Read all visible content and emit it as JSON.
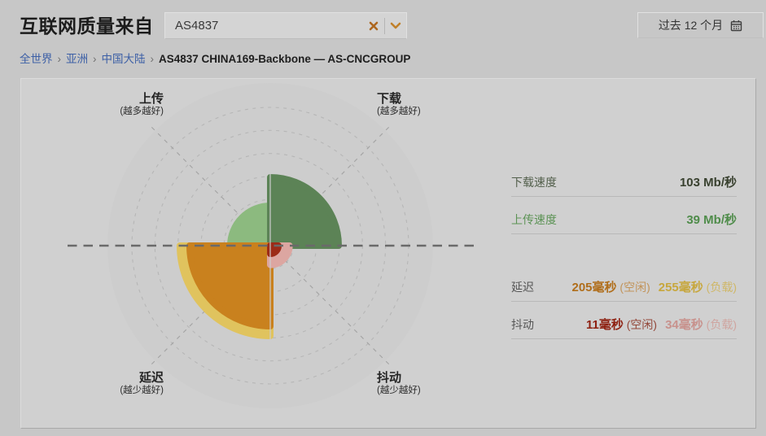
{
  "header": {
    "title": "互联网质量来自",
    "search": {
      "value": "AS4837",
      "clear_icon": "✕",
      "chevron_icon": "chevron-down"
    },
    "period": {
      "label": "过去 12 个月",
      "icon": "calendar"
    }
  },
  "breadcrumb": {
    "links": [
      "全世界",
      "亚洲",
      "中国大陆"
    ],
    "separator": "›",
    "current": "AS4837 CHINA169-Backbone — AS-CNCGROUP"
  },
  "chart_data": {
    "type": "pie",
    "subtype": "polar-quadrant-gauge",
    "title": "",
    "grid": {
      "dashed_rings": 6,
      "outer_radius_px": 200,
      "diagonal_dashed_axes": true,
      "horizontal_dashed_line": true,
      "disc_color": "#cdcdcd",
      "ring_color": "#b6b6b6",
      "diagonal_color": "#a2a2a2",
      "hline_color": "#6a6a6a"
    },
    "axes": [
      {
        "position": "top-left",
        "title": "上传",
        "note": "(越多越好)"
      },
      {
        "position": "top-right",
        "title": "下载",
        "note": "(越多越好)"
      },
      {
        "position": "bottom-left",
        "title": "延迟",
        "note": "(越少越好)"
      },
      {
        "position": "bottom-right",
        "title": "抖动",
        "note": "(越少越好)"
      }
    ],
    "wedges": [
      {
        "metric": "upload",
        "quadrant": "top-left",
        "value": 39,
        "unit": "Mb/秒",
        "radius_frac": 0.265,
        "color": "#8cba7f"
      },
      {
        "metric": "download",
        "quadrant": "top-right",
        "value": 103,
        "unit": "Mb/秒",
        "radius_frac": 0.44,
        "color": "#5c8356"
      },
      {
        "metric": "latency_loaded",
        "quadrant": "bottom-left",
        "value": 255,
        "unit": "毫秒",
        "radius_frac": 0.575,
        "color": "#e0c35e"
      },
      {
        "metric": "latency_idle",
        "quadrant": "bottom-left",
        "value": 205,
        "unit": "毫秒",
        "radius_frac": 0.515,
        "color": "#c9811e"
      },
      {
        "metric": "jitter_loaded",
        "quadrant": "bottom-right",
        "value": 34,
        "unit": "毫秒",
        "radius_frac": 0.138,
        "color": "#dca6a1"
      },
      {
        "metric": "jitter_idle",
        "quadrant": "bottom-right",
        "value": 11,
        "unit": "毫秒",
        "radius_frac": 0.07,
        "color": "#9c2b17"
      }
    ]
  },
  "stats": {
    "download": {
      "label": "下载速度",
      "value": "103 Mb/秒"
    },
    "upload": {
      "label": "上传速度",
      "value": "39 Mb/秒"
    },
    "latency": {
      "label": "延迟",
      "idle_value": "205毫秒",
      "idle_note": "(空闲)",
      "loaded_value": "255毫秒",
      "loaded_note": "(负载)"
    },
    "jitter": {
      "label": "抖动",
      "idle_value": "11毫秒",
      "idle_note": "(空闲)",
      "loaded_value": "34毫秒",
      "loaded_note": "(负载)"
    }
  }
}
